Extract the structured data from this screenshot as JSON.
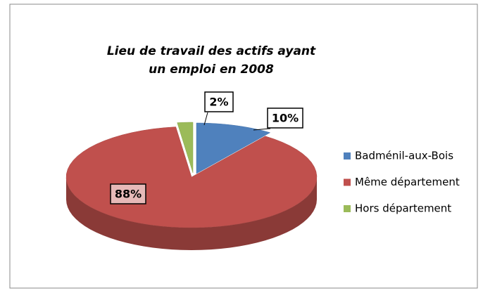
{
  "chart_data": {
    "type": "pie3d",
    "title": "Lieu de travail des actifs ayant un emploi en 2008",
    "categories": [
      "Badménil-aux-Bois",
      "Même département",
      "Hors département"
    ],
    "values": [
      10,
      88,
      2
    ],
    "value_labels": [
      "10%",
      "88%",
      "2%"
    ],
    "colors": [
      "#4f81bd",
      "#c0504d",
      "#9bbb59"
    ],
    "legend": "right"
  }
}
